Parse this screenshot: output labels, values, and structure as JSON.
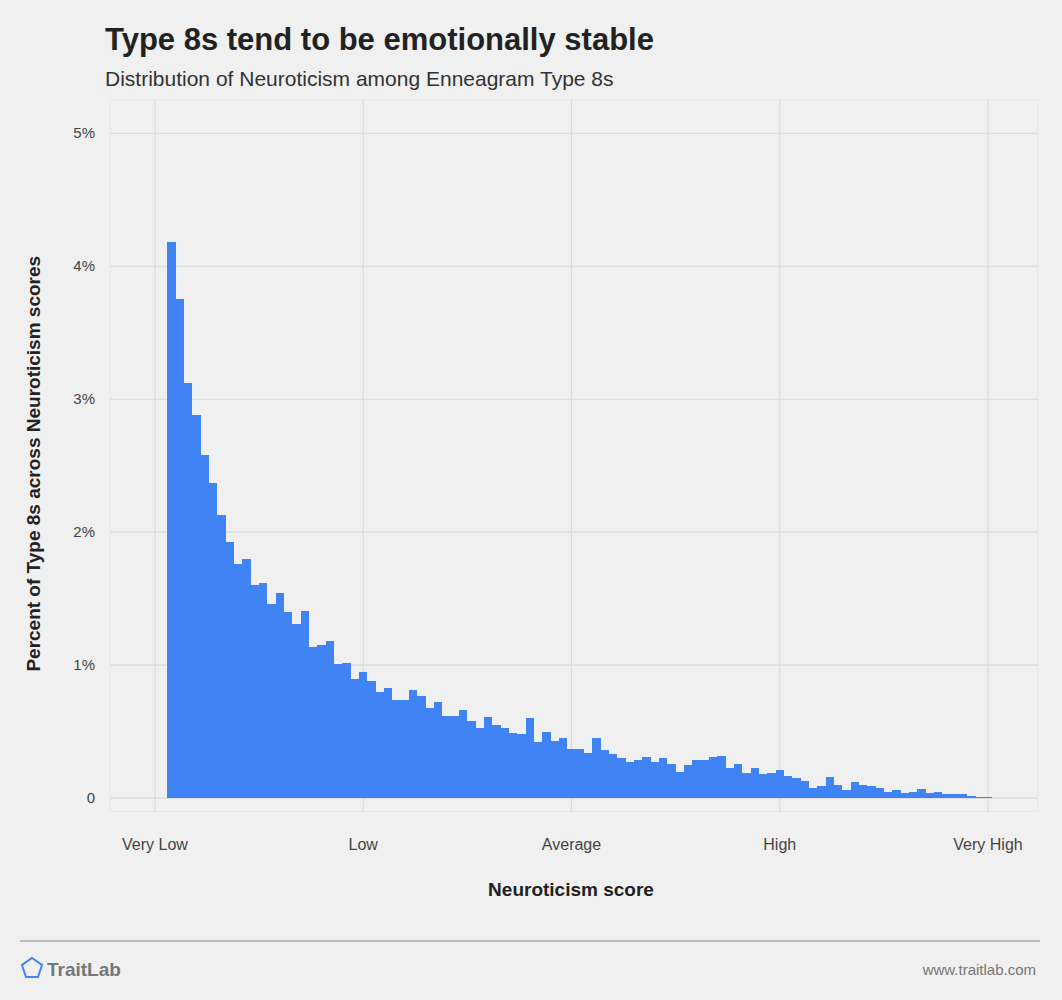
{
  "chart_data": {
    "type": "histogram",
    "title": "Type 8s tend to be emotionally stable",
    "subtitle": "Distribution of Neuroticism among Enneagram Type 8s",
    "x_label": "Neuroticism score",
    "y_label": "Percent of Type 8s across Neuroticism scores",
    "brand": "TraitLab",
    "source_url": "www.traitlab.com",
    "color": "#3f83f5",
    "grid": true,
    "bins": [
      1.5,
      2.5,
      3.5,
      4.5,
      5.5,
      6.5,
      7.5,
      8.5,
      9.5,
      10.5,
      11.5,
      12.5,
      13.5,
      14.5,
      15.5,
      16.5,
      17.5,
      18.5,
      19.5,
      20.5,
      21.5,
      22.5,
      23.5,
      24.5,
      25.5,
      26.5,
      27.5,
      28.5,
      29.5,
      30.5,
      31.5,
      32.5,
      33.5,
      34.5,
      35.5,
      36.5,
      37.5,
      38.5,
      39.5,
      40.5,
      41.5,
      42.5,
      43.5,
      44.5,
      45.5,
      46.5,
      47.5,
      48.5,
      49.5,
      50.5,
      51.5,
      52.5,
      53.5,
      54.5,
      55.5,
      56.5,
      57.5,
      58.5,
      59.5,
      60.5,
      61.5,
      62.5,
      63.5,
      64.5,
      65.5,
      66.5,
      67.5,
      68.5,
      69.5,
      70.5,
      71.5,
      72.5,
      73.5,
      74.5,
      75.5,
      76.5,
      77.5,
      78.5,
      79.5,
      80.5,
      81.5,
      82.5,
      83.5,
      84.5,
      85.5,
      86.5,
      87.5,
      88.5,
      89.5,
      90.5,
      91.5,
      92.5,
      93.5,
      94.5,
      95.5,
      96.5,
      97.5,
      98.5,
      99.5,
      100.5
    ],
    "values": [
      4.18,
      3.75,
      3.12,
      2.88,
      2.58,
      2.37,
      2.13,
      1.93,
      1.76,
      1.8,
      1.6,
      1.62,
      1.46,
      1.54,
      1.4,
      1.31,
      1.41,
      1.14,
      1.15,
      1.18,
      1.01,
      1.02,
      0.9,
      0.95,
      0.88,
      0.8,
      0.83,
      0.74,
      0.74,
      0.81,
      0.77,
      0.68,
      0.72,
      0.62,
      0.62,
      0.66,
      0.58,
      0.53,
      0.61,
      0.55,
      0.53,
      0.49,
      0.48,
      0.6,
      0.42,
      0.5,
      0.43,
      0.45,
      0.37,
      0.37,
      0.34,
      0.45,
      0.36,
      0.33,
      0.3,
      0.27,
      0.29,
      0.31,
      0.27,
      0.3,
      0.26,
      0.2,
      0.25,
      0.29,
      0.29,
      0.31,
      0.32,
      0.23,
      0.26,
      0.19,
      0.23,
      0.18,
      0.19,
      0.21,
      0.17,
      0.15,
      0.13,
      0.08,
      0.09,
      0.16,
      0.1,
      0.06,
      0.12,
      0.1,
      0.09,
      0.08,
      0.05,
      0.06,
      0.04,
      0.05,
      0.07,
      0.04,
      0.05,
      0.03,
      0.03,
      0.03,
      0.02,
      0.01,
      0.01
    ],
    "xlim": [
      -5.4,
      106
    ],
    "xticks": [
      {
        "value": 0,
        "label": "Very Low"
      },
      {
        "value": 25,
        "label": "Low"
      },
      {
        "value": 50,
        "label": "Average"
      },
      {
        "value": 75,
        "label": "High"
      },
      {
        "value": 100,
        "label": "Very High"
      }
    ],
    "ylim": [
      -0.1,
      5.25
    ],
    "yticks": [
      0,
      {
        "value": 1,
        "label": "1%"
      },
      {
        "value": 2,
        "label": "2%"
      },
      {
        "value": 3,
        "label": "3%"
      },
      {
        "value": 4,
        "label": "4%"
      },
      {
        "value": 5,
        "label": "5%"
      }
    ]
  }
}
